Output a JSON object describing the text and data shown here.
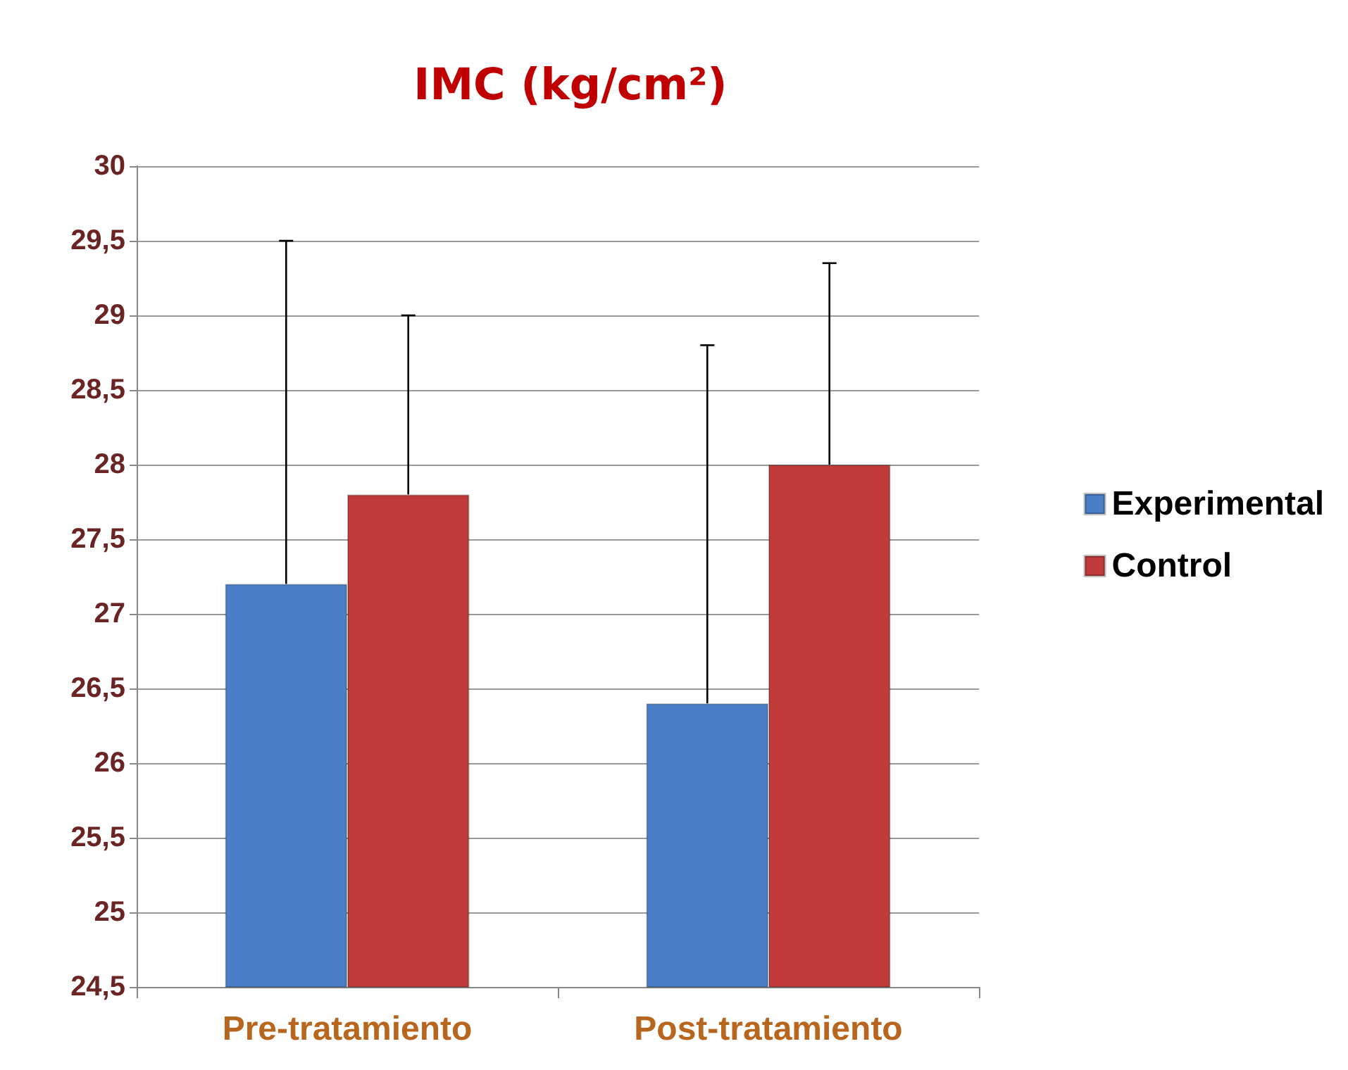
{
  "chart_data": {
    "type": "bar",
    "title": "IMC (kg/cm²)",
    "categories": [
      "Pre-tratamiento",
      "Post-tratamiento"
    ],
    "series": [
      {
        "name": "Experimental",
        "color": "#4a7fc8",
        "values": [
          27.2,
          26.4
        ],
        "errors": [
          [
            27.2,
            29.5
          ],
          [
            26.4,
            28.8
          ]
        ]
      },
      {
        "name": "Control",
        "color": "#c23b3b",
        "values": [
          27.8,
          28.0
        ],
        "errors": [
          [
            27.8,
            29.0
          ],
          [
            28.0,
            29.35
          ]
        ]
      }
    ],
    "ylim": [
      24.5,
      30
    ],
    "yticks": [
      {
        "value": 24.5,
        "label": "24,5"
      },
      25,
      {
        "value": 25.5,
        "label": "25,5"
      },
      26,
      {
        "value": 26.5,
        "label": "26,5"
      },
      27,
      {
        "value": 27.5,
        "label": "27,5"
      },
      28,
      {
        "value": 28.5,
        "label": "28,5"
      },
      29,
      {
        "value": 29.5,
        "label": "29,5"
      },
      30
    ],
    "grid": "y",
    "legend": "right"
  }
}
